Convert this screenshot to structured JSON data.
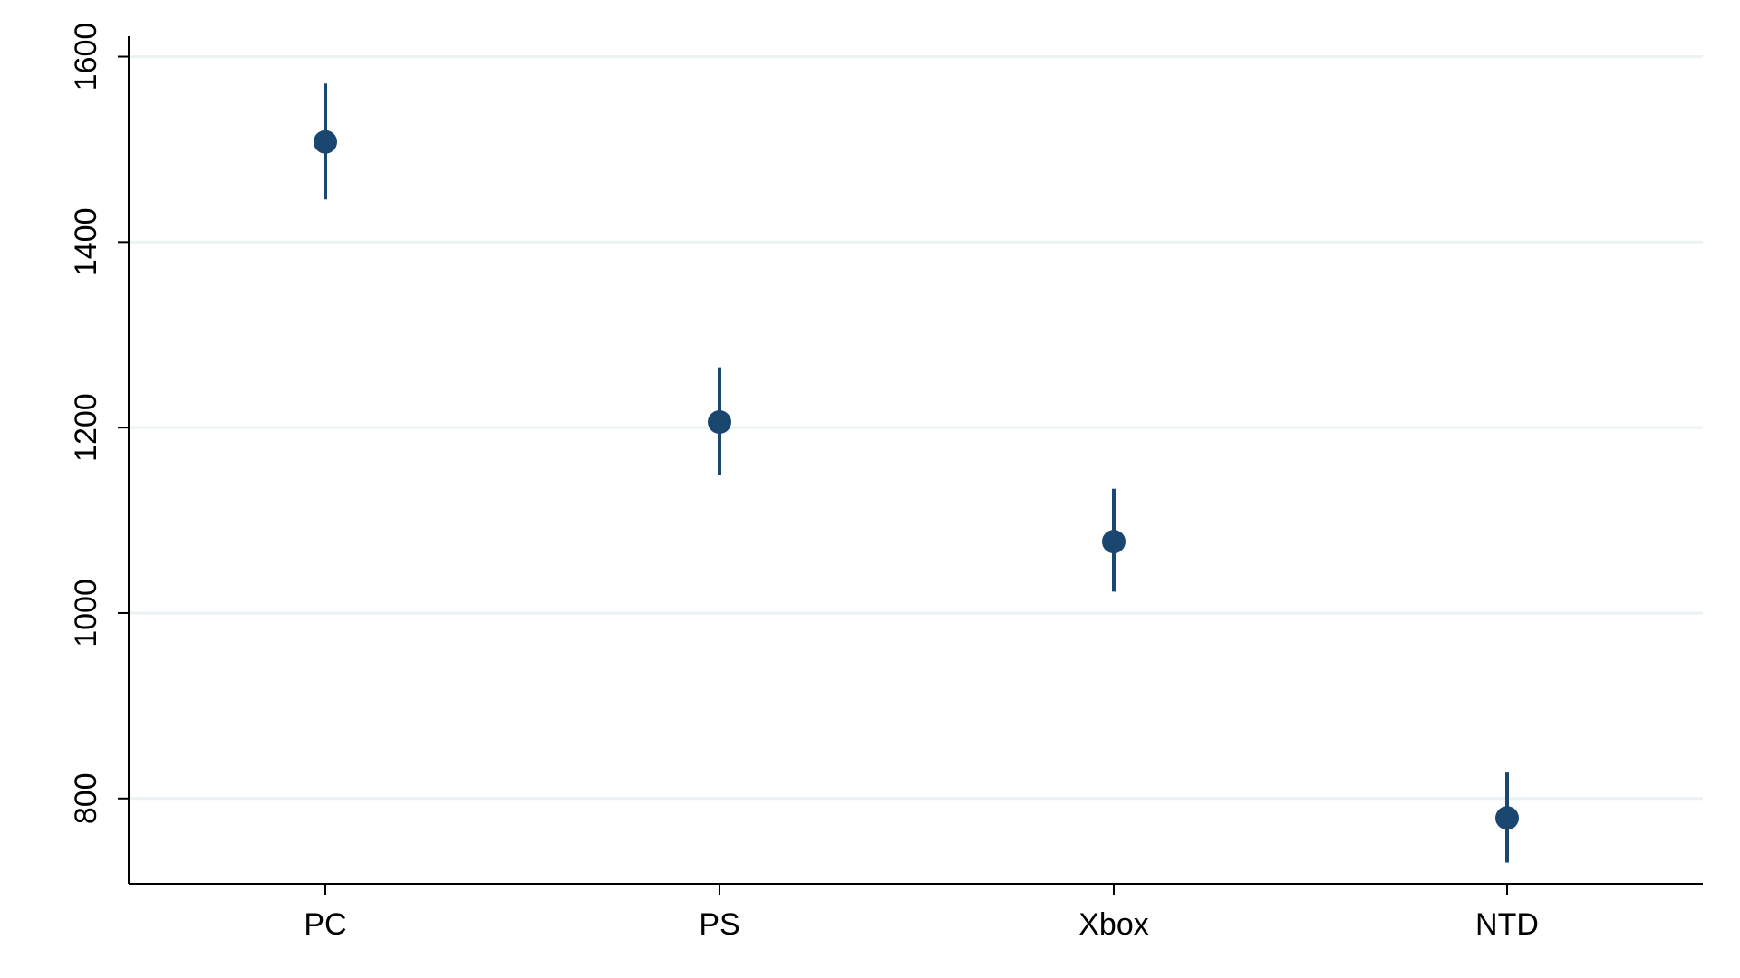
{
  "colors": {
    "marker": "#1a476f",
    "gridline": "#eaf2f3",
    "axis": "#000000",
    "background": "#ffffff"
  },
  "chart_data": {
    "type": "scatter",
    "subtype": "point-with-confidence-interval",
    "title": "",
    "xlabel": "",
    "ylabel": "",
    "categories": [
      "PC",
      "PS",
      "Xbox",
      "NTD"
    ],
    "values": [
      1508,
      1206,
      1077,
      779
    ],
    "ci_lower": [
      1446,
      1149,
      1023,
      731
    ],
    "ci_upper": [
      1571,
      1265,
      1134,
      828
    ],
    "ylim": [
      708,
      1622
    ],
    "yticks": [
      800,
      1000,
      1200,
      1400,
      1600
    ],
    "ytick_labels": [
      "800",
      "1000",
      "1200",
      "1400",
      "1600"
    ],
    "grid": true,
    "legend": "none"
  }
}
